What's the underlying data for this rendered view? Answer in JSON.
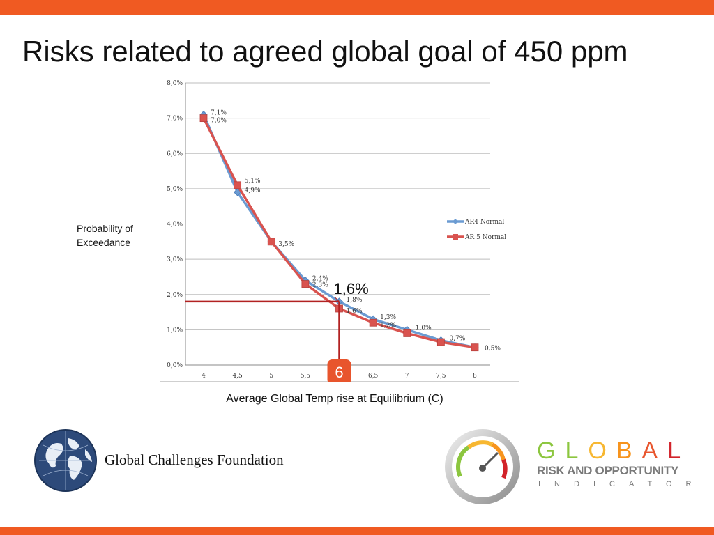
{
  "slide": {
    "title": "Risks related to agreed global goal of 450 ppm",
    "accent_color": "#f05a22"
  },
  "chart_data": {
    "type": "line",
    "ylabel": "Probability of Exceedance",
    "xlabel": "Average Global Temp rise at Equilibrium (C)",
    "x": [
      "4",
      "4,5",
      "5",
      "5,5",
      "6",
      "6,5",
      "7",
      "7,5",
      "8"
    ],
    "yticks": [
      "0,0%",
      "1,0%",
      "2,0%",
      "3,0%",
      "4,0%",
      "5,0%",
      "6,0%",
      "7,0%",
      "8,0%"
    ],
    "ylim": [
      0,
      8
    ],
    "grid": true,
    "legend_position": "right",
    "series": [
      {
        "name": "AR4 Normal",
        "color": "#6b9bd2",
        "marker": "diamond",
        "values": [
          7.1,
          4.9,
          3.5,
          2.4,
          1.8,
          1.3,
          1.0,
          0.7,
          0.5
        ],
        "labels": [
          "7,1%",
          "4,9%",
          "3,5%",
          "2,4%",
          "1,8%",
          "1,3%",
          "1,0%",
          "0,7%",
          "0,5%"
        ]
      },
      {
        "name": "AR 5 Normal",
        "color": "#d9534f",
        "marker": "square",
        "values": [
          7.0,
          5.1,
          3.5,
          2.3,
          1.6,
          1.2,
          0.9,
          0.65,
          0.5
        ],
        "labels": [
          "7,0%",
          "5,1%",
          "",
          "2,3%",
          "1,6%",
          "1,2%",
          "",
          "",
          ""
        ]
      }
    ],
    "annotations": {
      "highlight_value": "1,6%",
      "highlight_x_badge": "6",
      "highlight_y_percent": 1.8,
      "highlight_color": "#b22222"
    }
  },
  "footer": {
    "foundation_name": "Global Challenges Foundation",
    "brand": {
      "letters": [
        "G",
        "L",
        "O",
        "B",
        "A",
        "L"
      ],
      "letter_colors": [
        "#8cc63f",
        "#8cc63f",
        "#f7b731",
        "#f7941d",
        "#e8552d",
        "#d2232a"
      ],
      "line2": "RISK AND OPPORTUNITY",
      "line3": "INDICATOR"
    }
  }
}
